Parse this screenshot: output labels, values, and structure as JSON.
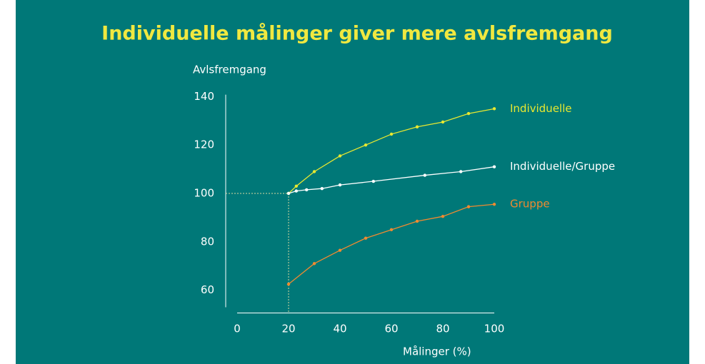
{
  "chart_data": {
    "type": "line",
    "title": "Individuelle målinger giver mere avlsfremgang",
    "y_label": "Avlsfremgang",
    "x_label": "Målinger (%)",
    "xlim": [
      0,
      100
    ],
    "xticks": [
      0,
      20,
      40,
      60,
      80,
      100
    ],
    "ylim": [
      50,
      142
    ],
    "yticks": [
      60,
      80,
      100,
      120,
      140
    ],
    "series": [
      {
        "name": "Individuelle",
        "color": "#e8e830",
        "x": [
          20,
          23,
          30,
          40,
          50,
          60,
          70,
          80,
          90,
          100
        ],
        "values": [
          100,
          103,
          109,
          115.5,
          120,
          124.5,
          127.5,
          129.5,
          133,
          135
        ]
      },
      {
        "name": "Individuelle/Gruppe",
        "color": "#ffffff",
        "x": [
          20,
          23,
          27,
          33,
          40,
          53,
          73,
          87,
          100
        ],
        "values": [
          100,
          101,
          101.5,
          102,
          103.5,
          105,
          107.5,
          109,
          111
        ]
      },
      {
        "name": "Gruppe",
        "color": "#f08a30",
        "x": [
          20,
          30,
          40,
          50,
          60,
          70,
          80,
          90,
          100
        ],
        "values": [
          62.5,
          71,
          76.5,
          81.5,
          85,
          88.5,
          90.5,
          94.5,
          95.5
        ]
      }
    ]
  }
}
